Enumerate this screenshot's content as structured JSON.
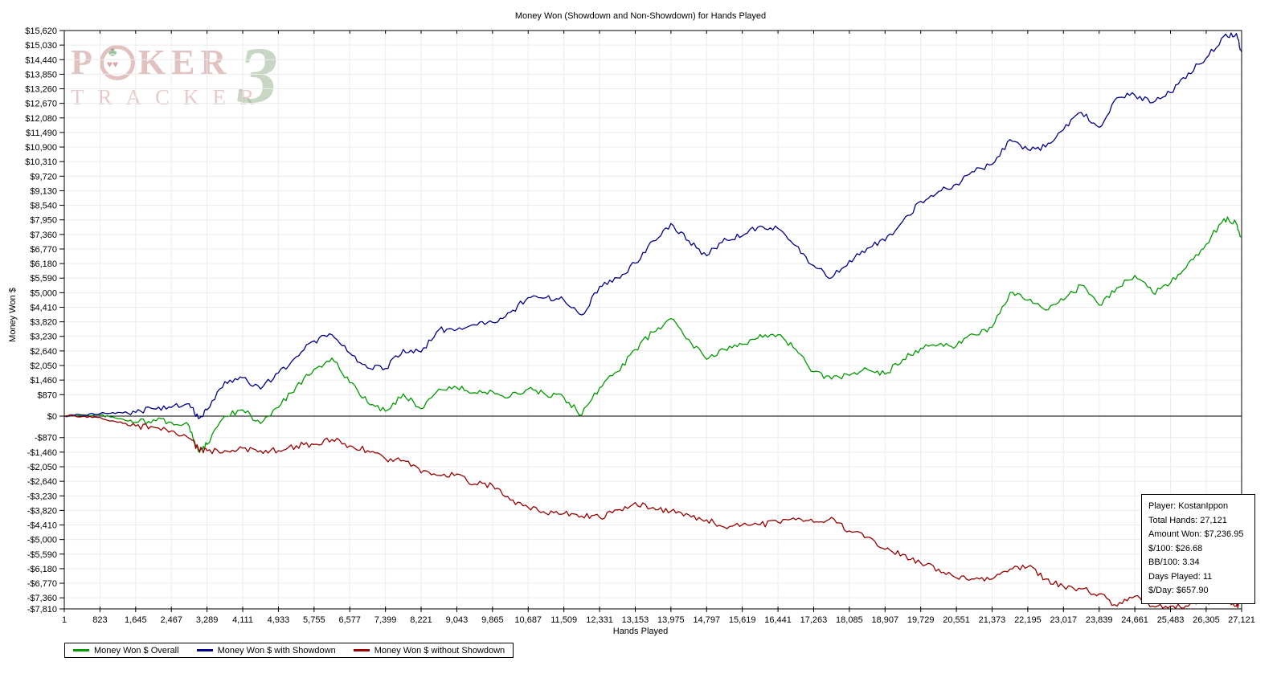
{
  "window": {
    "title": "Money Won (Showdown and Non-Showdown) for Hands Played"
  },
  "watermark": {
    "p": "P",
    "ker": "KER",
    "club": "♣",
    "hearts": "♥♥",
    "line2": "TRACKER",
    "numeral": "3"
  },
  "info_box": {
    "lines": [
      "Player: KostanIppon",
      "Total Hands: 27,121",
      "Amount Won: $7,236.95",
      "$/100: $26.68",
      "BB/100: 3.34",
      "Days Played: 11",
      "$/Day: $657.90"
    ]
  },
  "chart_data": {
    "type": "line",
    "title": "Money Won (Showdown and Non-Showdown) for Hands Played",
    "xlabel": "Hands Played",
    "ylabel": "Money Won $",
    "xlim": [
      1,
      27121
    ],
    "ylim": [
      -7810,
      15620
    ],
    "grid": true,
    "zero_line": true,
    "legend_position": "bottom-left",
    "x_ticks": [
      1,
      823,
      1645,
      2467,
      3289,
      4111,
      4933,
      5755,
      6577,
      7399,
      8221,
      9043,
      9865,
      10687,
      11509,
      12331,
      13153,
      13975,
      14797,
      15619,
      16441,
      17263,
      18085,
      18907,
      19729,
      20551,
      21373,
      22195,
      23017,
      23839,
      24661,
      25483,
      26305,
      27121
    ],
    "x_tick_labels": [
      "1",
      "823",
      "1,645",
      "2,467",
      "3,289",
      "4,111",
      "4,933",
      "5,755",
      "6,577",
      "7,399",
      "8,221",
      "9,043",
      "9,865",
      "10,687",
      "11,509",
      "12,331",
      "13,153",
      "13,975",
      "14,797",
      "15,619",
      "16,441",
      "17,263",
      "18,085",
      "18,907",
      "19,729",
      "20,551",
      "21,373",
      "22,195",
      "23,017",
      "23,839",
      "24,661",
      "25,483",
      "26,305",
      "27,121"
    ],
    "y_ticks": [
      15620,
      15030,
      14440,
      13850,
      13260,
      12670,
      12080,
      11490,
      10900,
      10310,
      9720,
      9130,
      8540,
      7950,
      7360,
      6770,
      6180,
      5590,
      5000,
      4410,
      3820,
      3230,
      2640,
      2050,
      1460,
      870,
      0,
      -870,
      -1460,
      -2050,
      -2640,
      -3230,
      -3820,
      -4410,
      -5000,
      -5590,
      -6180,
      -6770,
      -7360,
      -7810
    ],
    "y_tick_labels": [
      "$15,620",
      "$15,030",
      "$14,440",
      "$13,850",
      "$13,260",
      "$12,670",
      "$12,080",
      "$11,490",
      "$10,900",
      "$10,310",
      "$9,720",
      "$9,130",
      "$8,540",
      "$7,950",
      "$7,360",
      "$6,770",
      "$6,180",
      "$5,590",
      "$5,000",
      "$4,410",
      "$3,820",
      "$3,230",
      "$2,640",
      "$2,050",
      "$1,460",
      "$870",
      "$0",
      "-$870",
      "-$1,460",
      "-$2,050",
      "-$2,640",
      "-$3,230",
      "-$3,820",
      "-$4,410",
      "-$5,000",
      "-$5,590",
      "-$6,180",
      "-$6,770",
      "-$7,360",
      "-$7,810"
    ],
    "series": [
      {
        "name": "Money Won $ Overall",
        "color": "#009900",
        "points": [
          [
            1,
            0
          ],
          [
            411,
            30
          ],
          [
            823,
            50
          ],
          [
            1234,
            -100
          ],
          [
            1645,
            -250
          ],
          [
            2056,
            -150
          ],
          [
            2467,
            -250
          ],
          [
            2878,
            -400
          ],
          [
            3090,
            -1430
          ],
          [
            3289,
            -1150
          ],
          [
            3700,
            0
          ],
          [
            4111,
            250
          ],
          [
            4522,
            -300
          ],
          [
            4933,
            350
          ],
          [
            5344,
            1200
          ],
          [
            5755,
            1900
          ],
          [
            6166,
            2350
          ],
          [
            6577,
            1350
          ],
          [
            6988,
            550
          ],
          [
            7399,
            200
          ],
          [
            7810,
            900
          ],
          [
            8221,
            300
          ],
          [
            8632,
            1100
          ],
          [
            9043,
            1150
          ],
          [
            9454,
            950
          ],
          [
            9865,
            1000
          ],
          [
            10276,
            800
          ],
          [
            10687,
            1100
          ],
          [
            11098,
            850
          ],
          [
            11509,
            750
          ],
          [
            11920,
            50
          ],
          [
            12331,
            1150
          ],
          [
            12742,
            1800
          ],
          [
            13153,
            2700
          ],
          [
            13564,
            3400
          ],
          [
            13975,
            3950
          ],
          [
            14386,
            3100
          ],
          [
            14797,
            2300
          ],
          [
            15208,
            2700
          ],
          [
            15619,
            2900
          ],
          [
            16030,
            3300
          ],
          [
            16441,
            3300
          ],
          [
            16852,
            2700
          ],
          [
            17263,
            1800
          ],
          [
            17674,
            1500
          ],
          [
            18085,
            1650
          ],
          [
            18496,
            1900
          ],
          [
            18907,
            1700
          ],
          [
            19318,
            2300
          ],
          [
            19729,
            2750
          ],
          [
            20140,
            2900
          ],
          [
            20551,
            2850
          ],
          [
            20962,
            3300
          ],
          [
            21373,
            3600
          ],
          [
            21784,
            5000
          ],
          [
            22195,
            4700
          ],
          [
            22606,
            4300
          ],
          [
            23017,
            4700
          ],
          [
            23428,
            5300
          ],
          [
            23839,
            4500
          ],
          [
            24250,
            5200
          ],
          [
            24661,
            5700
          ],
          [
            25072,
            5000
          ],
          [
            25483,
            5400
          ],
          [
            25894,
            6200
          ],
          [
            26305,
            6960
          ],
          [
            26716,
            8000
          ],
          [
            27000,
            7800
          ],
          [
            27121,
            7237
          ]
        ]
      },
      {
        "name": "Money Won $ with Showdown",
        "color": "#00008B",
        "points": [
          [
            1,
            0
          ],
          [
            411,
            50
          ],
          [
            823,
            100
          ],
          [
            1234,
            150
          ],
          [
            1645,
            150
          ],
          [
            2056,
            300
          ],
          [
            2467,
            350
          ],
          [
            2878,
            500
          ],
          [
            3090,
            -100
          ],
          [
            3289,
            250
          ],
          [
            3700,
            1400
          ],
          [
            4111,
            1550
          ],
          [
            4522,
            1100
          ],
          [
            4933,
            1750
          ],
          [
            5344,
            2400
          ],
          [
            5755,
            3050
          ],
          [
            6166,
            3300
          ],
          [
            6577,
            2550
          ],
          [
            6988,
            1950
          ],
          [
            7399,
            1930
          ],
          [
            7810,
            2700
          ],
          [
            8221,
            2600
          ],
          [
            8632,
            3500
          ],
          [
            9043,
            3500
          ],
          [
            9454,
            3700
          ],
          [
            9865,
            3800
          ],
          [
            10276,
            4200
          ],
          [
            10687,
            4800
          ],
          [
            11098,
            4800
          ],
          [
            11509,
            4700
          ],
          [
            11920,
            4100
          ],
          [
            12331,
            5250
          ],
          [
            12742,
            5600
          ],
          [
            13153,
            6200
          ],
          [
            13564,
            7100
          ],
          [
            13975,
            7800
          ],
          [
            14386,
            7100
          ],
          [
            14797,
            6500
          ],
          [
            15208,
            7200
          ],
          [
            15619,
            7300
          ],
          [
            16030,
            7700
          ],
          [
            16441,
            7600
          ],
          [
            16852,
            6900
          ],
          [
            17263,
            6100
          ],
          [
            17674,
            5600
          ],
          [
            18085,
            6300
          ],
          [
            18496,
            6800
          ],
          [
            18907,
            7100
          ],
          [
            19318,
            7900
          ],
          [
            19729,
            8700
          ],
          [
            20140,
            9100
          ],
          [
            20551,
            9400
          ],
          [
            20962,
            9900
          ],
          [
            21373,
            10200
          ],
          [
            21784,
            11200
          ],
          [
            22195,
            10800
          ],
          [
            22606,
            10900
          ],
          [
            23017,
            11600
          ],
          [
            23428,
            12300
          ],
          [
            23839,
            11700
          ],
          [
            24250,
            12900
          ],
          [
            24661,
            13000
          ],
          [
            25072,
            12700
          ],
          [
            25483,
            13100
          ],
          [
            25894,
            13900
          ],
          [
            26305,
            14500
          ],
          [
            26716,
            15400
          ],
          [
            27000,
            15500
          ],
          [
            27121,
            14750
          ]
        ]
      },
      {
        "name": "Money Won $ without Showdown",
        "color": "#990000",
        "points": [
          [
            1,
            0
          ],
          [
            411,
            -20
          ],
          [
            823,
            -50
          ],
          [
            1234,
            -250
          ],
          [
            1645,
            -400
          ],
          [
            2056,
            -450
          ],
          [
            2467,
            -600
          ],
          [
            2878,
            -900
          ],
          [
            3090,
            -1330
          ],
          [
            3289,
            -1400
          ],
          [
            3700,
            -1400
          ],
          [
            4111,
            -1300
          ],
          [
            4522,
            -1400
          ],
          [
            4933,
            -1400
          ],
          [
            5344,
            -1200
          ],
          [
            5755,
            -1150
          ],
          [
            6166,
            -950
          ],
          [
            6577,
            -1200
          ],
          [
            6988,
            -1400
          ],
          [
            7399,
            -1730
          ],
          [
            7810,
            -1800
          ],
          [
            8221,
            -2300
          ],
          [
            8632,
            -2400
          ],
          [
            9043,
            -2350
          ],
          [
            9454,
            -2750
          ],
          [
            9865,
            -2800
          ],
          [
            10276,
            -3400
          ],
          [
            10687,
            -3700
          ],
          [
            11098,
            -3950
          ],
          [
            11509,
            -3950
          ],
          [
            11920,
            -4050
          ],
          [
            12331,
            -4100
          ],
          [
            12742,
            -3800
          ],
          [
            13153,
            -3500
          ],
          [
            13564,
            -3700
          ],
          [
            13975,
            -3850
          ],
          [
            14386,
            -4000
          ],
          [
            14797,
            -4200
          ],
          [
            15208,
            -4500
          ],
          [
            15619,
            -4400
          ],
          [
            16030,
            -4400
          ],
          [
            16441,
            -4300
          ],
          [
            16852,
            -4200
          ],
          [
            17263,
            -4300
          ],
          [
            17674,
            -4100
          ],
          [
            18085,
            -4650
          ],
          [
            18496,
            -4900
          ],
          [
            18907,
            -5400
          ],
          [
            19318,
            -5600
          ],
          [
            19729,
            -5950
          ],
          [
            20140,
            -6200
          ],
          [
            20551,
            -6550
          ],
          [
            20962,
            -6600
          ],
          [
            21373,
            -6600
          ],
          [
            21784,
            -6200
          ],
          [
            22195,
            -6100
          ],
          [
            22606,
            -6600
          ],
          [
            23017,
            -6900
          ],
          [
            23428,
            -7000
          ],
          [
            23839,
            -7200
          ],
          [
            24250,
            -7700
          ],
          [
            24661,
            -7300
          ],
          [
            25072,
            -7700
          ],
          [
            25483,
            -7700
          ],
          [
            25894,
            -7700
          ],
          [
            26305,
            -7540
          ],
          [
            26716,
            -7400
          ],
          [
            27000,
            -7700
          ],
          [
            27121,
            -7513
          ]
        ]
      }
    ]
  }
}
